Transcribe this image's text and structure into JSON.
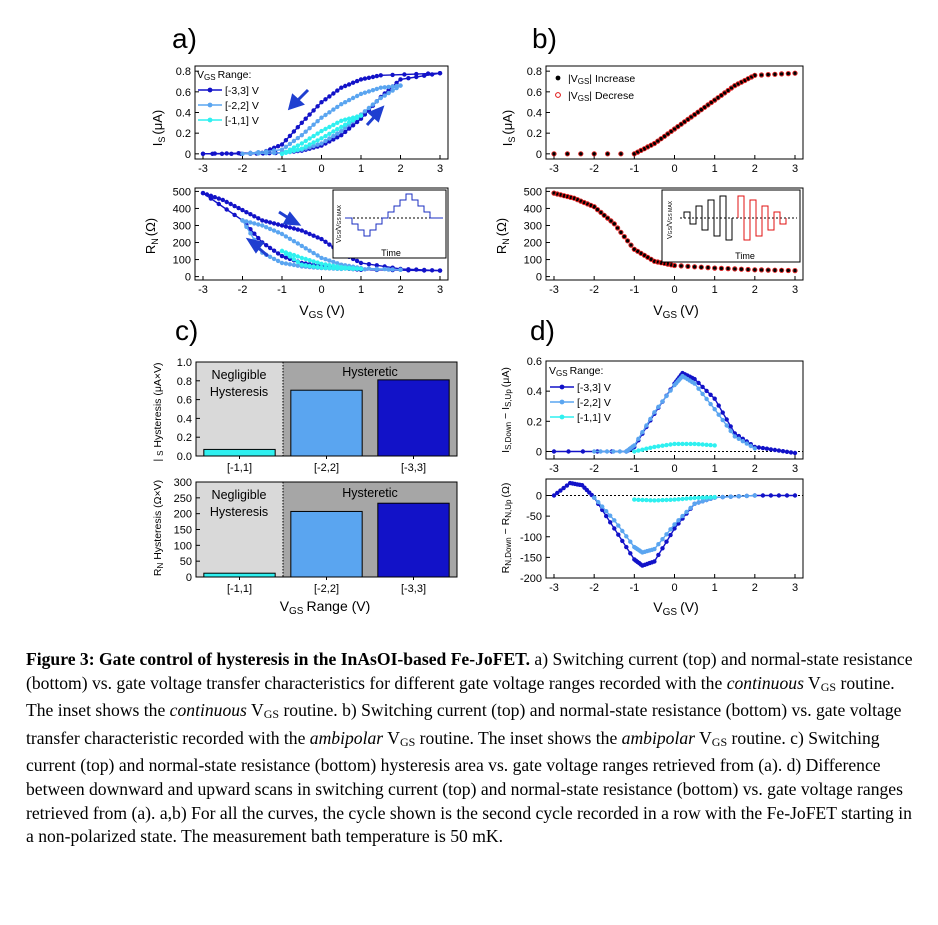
{
  "panel_labels": {
    "a": "a)",
    "b": "b)",
    "c": "c)",
    "d": "d)"
  },
  "colors": {
    "dark": "#1212c8",
    "mid": "#5aa5f0",
    "light": "#2ff0f0",
    "red": "#e01010",
    "black": "#000000",
    "gray_left": "#d9d9d9",
    "gray_right": "#a6a6a6"
  },
  "labels": {
    "is_unit": "(μA)",
    "rn_unit": "(Ω)",
    "vgs_unit": "(V)",
    "range_unit": "Range (V)",
    "hyst_is_pre": "| ",
    "hyst_is_post": " Hysteresis (μA×V)",
    "hyst_rn_post": " Hysteresis (Ω×V)",
    "diff_is_sep": " − I",
    "diff_is_unit": "(μA)",
    "diff_rn_sep": " − R",
    "diff_rn_unit": "(Ω)",
    "sub_s": "S",
    "sub_n": "N",
    "sub_gs": "GS",
    "sub_sdown": "S,Down",
    "sub_sup": "S,Up",
    "sub_ndown": "N,Down",
    "sub_nup": "N,Up",
    "sub_gsmax": "GS MAX",
    "range_title": "Range:",
    "increase": "| Increase",
    "decrease": "| Decrese",
    "time": "Time",
    "negligible_1": "Negligible",
    "negligible_2": "Hysteresis",
    "hysteretic": "Hysteretic"
  },
  "legend_ranges": [
    "[-3,3] V",
    "[-2,2] V",
    "[-1,1] V"
  ],
  "chart_data": [
    {
      "id": "a_top",
      "type": "line",
      "title": "a)",
      "xlabel": "VGS (V)",
      "ylabel": "IS (μA)",
      "xlim": [
        -3,
        3
      ],
      "ylim": [
        -0.05,
        0.85
      ],
      "xticks": [
        -3,
        -2,
        -1,
        0,
        1,
        2,
        3
      ],
      "yticks": [
        0.0,
        0.2,
        0.4,
        0.6,
        0.8
      ],
      "series": [
        {
          "name": "[-3,3] V",
          "x_up": [
            -3,
            -1.8,
            -1.0,
            -0.5,
            0,
            0.5,
            1.0,
            1.5,
            2.0,
            3
          ],
          "y_up": [
            0.0,
            0.0,
            0.01,
            0.03,
            0.08,
            0.18,
            0.34,
            0.55,
            0.72,
            0.78
          ],
          "x_down": [
            3,
            1.5,
            1.0,
            0.5,
            0,
            -0.5,
            -1.0,
            -1.5,
            -3
          ],
          "y_down": [
            0.78,
            0.76,
            0.72,
            0.64,
            0.5,
            0.3,
            0.09,
            0.01,
            0.0
          ]
        },
        {
          "name": "[-2,2] V",
          "x_up": [
            -2,
            -1.0,
            -0.5,
            0,
            0.5,
            1.0,
            1.5,
            2.0
          ],
          "y_up": [
            0.0,
            0.01,
            0.04,
            0.1,
            0.22,
            0.38,
            0.54,
            0.66
          ],
          "x_down": [
            2.0,
            1.5,
            1.0,
            0.5,
            0,
            -0.5,
            -1.0,
            -2.0
          ],
          "y_down": [
            0.66,
            0.64,
            0.58,
            0.48,
            0.35,
            0.18,
            0.04,
            0.0
          ]
        },
        {
          "name": "[-1,1] V",
          "x_up": [
            -1,
            -0.5,
            0,
            0.5,
            1.0
          ],
          "y_up": [
            0.0,
            0.05,
            0.15,
            0.26,
            0.37
          ],
          "x_down": [
            1.0,
            0.5,
            0,
            -0.5,
            -1.0
          ],
          "y_down": [
            0.37,
            0.32,
            0.22,
            0.1,
            0.0
          ]
        }
      ]
    },
    {
      "id": "a_bottom",
      "type": "line",
      "xlabel": "VGS (V)",
      "ylabel": "RN (Ω)",
      "xlim": [
        -3,
        3
      ],
      "ylim": [
        -20,
        520
      ],
      "xticks": [
        -3,
        -2,
        -1,
        0,
        1,
        2,
        3
      ],
      "yticks": [
        0,
        100,
        200,
        300,
        400,
        500
      ],
      "series": [
        {
          "name": "[-3,3] V",
          "x_down": [
            -3,
            -2.5,
            -2.0,
            -1.5,
            -1.0,
            -0.5,
            0,
            0.5,
            1.0,
            2.0,
            3
          ],
          "y_down": [
            490,
            450,
            390,
            330,
            300,
            270,
            220,
            140,
            80,
            45,
            35
          ],
          "x_up": [
            3,
            1.0,
            0.5,
            0,
            -0.5,
            -1.0,
            -1.5,
            -2.0,
            -3
          ],
          "y_up": [
            35,
            40,
            50,
            60,
            80,
            120,
            200,
            330,
            490
          ]
        },
        {
          "name": "[-2,2] V",
          "x_down": [
            -2.0,
            -1.5,
            -1.0,
            -0.5,
            0,
            0.5,
            1.0,
            2.0
          ],
          "y_down": [
            330,
            300,
            250,
            180,
            110,
            70,
            50,
            40
          ],
          "x_up": [
            2.0,
            0.5,
            0,
            -0.5,
            -1.0,
            -1.5,
            -2.0
          ],
          "y_up": [
            40,
            45,
            50,
            60,
            80,
            140,
            330
          ]
        },
        {
          "name": "[-1,1] V",
          "x_down": [
            -1.0,
            -0.5,
            0,
            0.5,
            1.0
          ],
          "y_down": [
            150,
            110,
            75,
            55,
            45
          ],
          "x_up": [
            1.0,
            0.5,
            0,
            -0.5,
            -1.0
          ],
          "y_up": [
            45,
            48,
            52,
            70,
            150
          ]
        }
      ],
      "inset": {
        "xlabel": "Time",
        "ylabel": "VGS/VGS MAX",
        "waveform": "triangular"
      }
    },
    {
      "id": "b_top",
      "type": "scatter",
      "title": "b)",
      "xlabel": "VGS (V)",
      "ylabel": "IS (μA)",
      "xlim": [
        -3,
        3
      ],
      "ylim": [
        -0.05,
        0.85
      ],
      "xticks": [
        -3,
        -2,
        -1,
        0,
        1,
        2,
        3
      ],
      "yticks": [
        0.0,
        0.2,
        0.4,
        0.6,
        0.8
      ],
      "series": [
        {
          "name": "|VGS| Increase",
          "x": [
            -3,
            -1.0,
            -0.5,
            0,
            0.5,
            1.0,
            1.5,
            2.0,
            3
          ],
          "y": [
            0.0,
            0.0,
            0.1,
            0.24,
            0.38,
            0.52,
            0.66,
            0.76,
            0.78
          ]
        },
        {
          "name": "|VGS| Decrese",
          "x": [
            -3,
            -1.0,
            -0.5,
            0,
            0.5,
            1.0,
            1.5,
            2.0,
            3
          ],
          "y": [
            0.0,
            0.0,
            0.1,
            0.24,
            0.38,
            0.52,
            0.66,
            0.76,
            0.78
          ]
        }
      ]
    },
    {
      "id": "b_bottom",
      "type": "scatter",
      "xlabel": "VGS (V)",
      "ylabel": "RN (Ω)",
      "xlim": [
        -3,
        3
      ],
      "ylim": [
        -20,
        520
      ],
      "xticks": [
        -3,
        -2,
        -1,
        0,
        1,
        2,
        3
      ],
      "yticks": [
        0,
        100,
        200,
        300,
        400,
        500
      ],
      "series": [
        {
          "name": "|VGS| Increase",
          "x": [
            -3,
            -2.5,
            -2.0,
            -1.5,
            -1.0,
            -0.5,
            0,
            1.0,
            2.0,
            3
          ],
          "y": [
            490,
            460,
            410,
            310,
            160,
            90,
            65,
            50,
            40,
            35
          ]
        },
        {
          "name": "|VGS| Decrese",
          "x": [
            -3,
            -2.5,
            -2.0,
            -1.5,
            -1.0,
            -0.5,
            0,
            1.0,
            2.0,
            3
          ],
          "y": [
            490,
            460,
            410,
            310,
            160,
            90,
            65,
            50,
            40,
            35
          ]
        }
      ],
      "inset": {
        "xlabel": "Time",
        "ylabel": "VGS/VGS MAX",
        "waveform": "ambipolar"
      }
    },
    {
      "id": "c_top",
      "type": "bar",
      "title": "c)",
      "ylabel": "| S Hysteresis (μA×V)",
      "categories": [
        "[-1,1]",
        "[-2,2]",
        "[-3,3]"
      ],
      "values": [
        0.07,
        0.7,
        0.81
      ],
      "ylim": [
        0,
        1.0
      ],
      "yticks": [
        0.0,
        0.2,
        0.4,
        0.6,
        0.8,
        1.0
      ]
    },
    {
      "id": "c_bottom",
      "type": "bar",
      "xlabel": "VGS Range (V)",
      "ylabel": "RN Hysteresis (Ω×V)",
      "categories": [
        "[-1,1]",
        "[-2,2]",
        "[-3,3]"
      ],
      "values": [
        12,
        207,
        233
      ],
      "ylim": [
        0,
        300
      ],
      "yticks": [
        0,
        50,
        100,
        150,
        200,
        250,
        300
      ]
    },
    {
      "id": "d_top",
      "type": "line",
      "title": "d)",
      "xlabel": "VGS (V)",
      "ylabel": "IS,Down − IS,Up (μA)",
      "xlim": [
        -3,
        3
      ],
      "ylim": [
        -0.05,
        0.6
      ],
      "xticks": [
        -3,
        -2,
        -1,
        0,
        1,
        2,
        3
      ],
      "yticks": [
        0.0,
        0.2,
        0.4,
        0.6
      ],
      "series": [
        {
          "name": "[-3,3] V",
          "x": [
            -3,
            -1.2,
            -1.0,
            -0.5,
            0,
            0.2,
            0.5,
            1.0,
            1.5,
            2.0,
            2.5,
            3
          ],
          "y": [
            0.0,
            0.0,
            0.03,
            0.25,
            0.45,
            0.52,
            0.48,
            0.35,
            0.12,
            0.03,
            0.01,
            -0.01
          ]
        },
        {
          "name": "[-2,2] V",
          "x": [
            -2,
            -1.2,
            -1.0,
            -0.5,
            0,
            0.2,
            0.5,
            1.0,
            1.5,
            2.0
          ],
          "y": [
            0.0,
            0.0,
            0.04,
            0.26,
            0.44,
            0.5,
            0.45,
            0.28,
            0.1,
            0.02
          ]
        },
        {
          "name": "[-1,1] V",
          "x": [
            -1.0,
            -0.5,
            0,
            0.5,
            1.0
          ],
          "y": [
            0.0,
            0.03,
            0.05,
            0.05,
            0.04
          ]
        }
      ]
    },
    {
      "id": "d_bottom",
      "type": "line",
      "xlabel": "VGS (V)",
      "ylabel": "RN,Down − RN,Up (Ω)",
      "xlim": [
        -3,
        3
      ],
      "ylim": [
        -200,
        40
      ],
      "xticks": [
        -3,
        -2,
        -1,
        0,
        1,
        2,
        3
      ],
      "yticks": [
        -200,
        -150,
        -100,
        -50,
        0
      ],
      "series": [
        {
          "name": "[-3,3] V",
          "x": [
            -3,
            -2.6,
            -2.3,
            -2.0,
            -1.5,
            -1.0,
            -0.8,
            -0.5,
            0,
            0.5,
            1.0,
            2.0,
            3
          ],
          "y": [
            0,
            30,
            25,
            -5,
            -80,
            -155,
            -170,
            -160,
            -80,
            -20,
            -5,
            0,
            0
          ]
        },
        {
          "name": "[-2,2] V",
          "x": [
            -2.0,
            -1.5,
            -1.0,
            -0.8,
            -0.5,
            0,
            0.5,
            1.0,
            2.0
          ],
          "y": [
            -5,
            -60,
            -125,
            -138,
            -130,
            -70,
            -20,
            -5,
            0
          ]
        },
        {
          "name": "[-1,1] V",
          "x": [
            -1.0,
            -0.5,
            0,
            0.5,
            1.0
          ],
          "y": [
            -10,
            -12,
            -10,
            -6,
            -4
          ]
        }
      ]
    }
  ],
  "caption": {
    "title": "Figure 3: Gate control of hysteresis in the InAsOI-based Fe-JoFET.",
    "p1": " a) Switching current (top) and normal-state resistance (bottom) vs. gate voltage transfer characteristics for different gate voltage ranges recorded with the ",
    "continuous": "continuous",
    "vgs_v": "V",
    "vgs_sub": "GS",
    "p2": " routine. The inset shows the ",
    "p3": " routine. b) Switching current (top) and normal-state resistance (bottom) vs. gate voltage transfer characteristic recorded with the ",
    "ambipolar": "ambipolar",
    "p4": " routine. The inset shows the ",
    "p5": " routine. c) Switching current (top) and normal-state resistance (bottom) hysteresis area vs. gate voltage ranges retrieved from (a). d) Difference between downward and upward scans in switching current (top) and normal-state resistance (bottom) vs. gate voltage ranges retrieved from (a). a,b) For all the curves, the cycle shown is the second cycle recorded in a row with the Fe-JoFET starting in a non-polarized state. The measurement bath temperature is 50 mK."
  }
}
